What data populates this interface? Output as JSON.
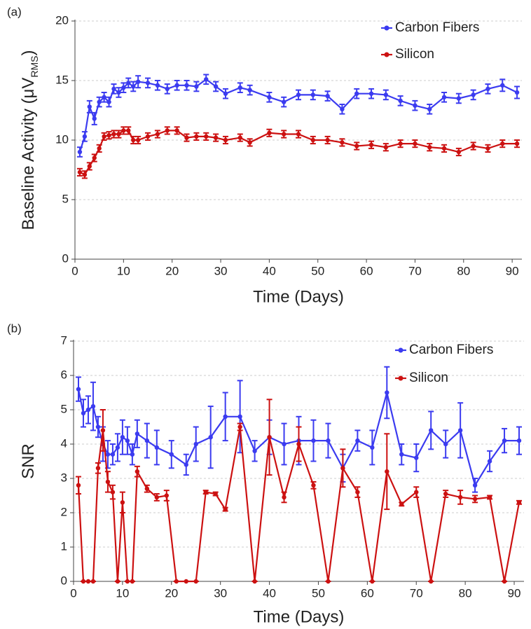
{
  "chart_data": [
    {
      "type": "line",
      "label": "(a)",
      "xlabel": "Time (Days)",
      "ylabel": [
        "Baseline Activity (μV",
        "RMS",
        ")"
      ],
      "xlim": [
        0,
        92
      ],
      "xticks": [
        0,
        10,
        20,
        30,
        40,
        50,
        60,
        70,
        80,
        90
      ],
      "ylim": [
        0,
        20
      ],
      "yticks": [
        0,
        5,
        10,
        15,
        20
      ],
      "grid": true,
      "legend": "upper right",
      "series": [
        {
          "name": "Carbon Fibers",
          "color": "#3b3bf0",
          "x": [
            1,
            2,
            3,
            4,
            5,
            6,
            7,
            8,
            9,
            10,
            11,
            12,
            13,
            15,
            17,
            19,
            21,
            23,
            25,
            27,
            29,
            31,
            34,
            36,
            40,
            43,
            46,
            49,
            52,
            55,
            58,
            61,
            64,
            67,
            70,
            73,
            76,
            79,
            82,
            85,
            88,
            91
          ],
          "values": [
            9.0,
            10.3,
            12.8,
            11.8,
            13.2,
            13.6,
            13.2,
            14.3,
            14.0,
            14.4,
            14.8,
            14.5,
            14.9,
            14.8,
            14.6,
            14.3,
            14.6,
            14.6,
            14.5,
            15.1,
            14.5,
            13.9,
            14.4,
            14.2,
            13.6,
            13.2,
            13.8,
            13.8,
            13.7,
            12.6,
            13.9,
            13.9,
            13.8,
            13.3,
            12.9,
            12.6,
            13.6,
            13.5,
            13.8,
            14.3,
            14.6,
            14.0
          ],
          "errors": [
            0.4,
            0.4,
            0.5,
            0.5,
            0.4,
            0.4,
            0.4,
            0.4,
            0.4,
            0.4,
            0.4,
            0.4,
            0.5,
            0.4,
            0.4,
            0.4,
            0.4,
            0.4,
            0.4,
            0.4,
            0.4,
            0.4,
            0.4,
            0.4,
            0.4,
            0.4,
            0.4,
            0.4,
            0.4,
            0.4,
            0.4,
            0.4,
            0.4,
            0.4,
            0.4,
            0.4,
            0.4,
            0.4,
            0.4,
            0.4,
            0.5,
            0.5
          ]
        },
        {
          "name": "Silicon",
          "color": "#cc1111",
          "x": [
            1,
            2,
            3,
            4,
            5,
            6,
            7,
            8,
            9,
            10,
            11,
            12,
            13,
            15,
            17,
            19,
            21,
            23,
            25,
            27,
            29,
            31,
            34,
            36,
            40,
            43,
            46,
            49,
            52,
            55,
            58,
            61,
            64,
            67,
            70,
            73,
            76,
            79,
            82,
            85,
            88,
            91
          ],
          "values": [
            7.3,
            7.1,
            7.8,
            8.5,
            9.3,
            10.3,
            10.4,
            10.5,
            10.5,
            10.8,
            10.8,
            10.0,
            10.0,
            10.3,
            10.5,
            10.8,
            10.8,
            10.2,
            10.3,
            10.3,
            10.2,
            10.0,
            10.2,
            9.8,
            10.6,
            10.5,
            10.5,
            10.0,
            10.0,
            9.8,
            9.5,
            9.6,
            9.4,
            9.7,
            9.7,
            9.4,
            9.3,
            9.0,
            9.5,
            9.3,
            9.7,
            9.7
          ],
          "errors": [
            0.3,
            0.3,
            0.3,
            0.3,
            0.3,
            0.3,
            0.3,
            0.3,
            0.3,
            0.3,
            0.3,
            0.3,
            0.3,
            0.3,
            0.3,
            0.3,
            0.3,
            0.3,
            0.3,
            0.3,
            0.3,
            0.3,
            0.3,
            0.3,
            0.3,
            0.3,
            0.3,
            0.3,
            0.3,
            0.3,
            0.3,
            0.3,
            0.3,
            0.3,
            0.3,
            0.3,
            0.3,
            0.3,
            0.3,
            0.3,
            0.3,
            0.3
          ]
        }
      ]
    },
    {
      "type": "line",
      "label": "(b)",
      "xlabel": "Time (Days)",
      "ylabel": [
        "SNR"
      ],
      "xlim": [
        0,
        92
      ],
      "xticks": [
        0,
        10,
        20,
        30,
        40,
        50,
        60,
        70,
        80,
        90
      ],
      "ylim": [
        0,
        7
      ],
      "yticks": [
        0,
        1,
        2,
        3,
        4,
        5,
        6,
        7
      ],
      "grid": true,
      "legend": "upper right",
      "series": [
        {
          "name": "Carbon Fibers",
          "color": "#3b3bf0",
          "x": [
            1,
            2,
            3,
            4,
            5,
            6,
            7,
            8,
            9,
            10,
            11,
            12,
            13,
            15,
            17,
            20,
            23,
            25,
            28,
            31,
            34,
            37,
            40,
            43,
            46,
            49,
            52,
            55,
            58,
            61,
            64,
            67,
            70,
            73,
            76,
            79,
            82,
            85,
            88,
            91
          ],
          "values": [
            5.6,
            4.9,
            5.0,
            5.1,
            4.5,
            4.0,
            3.7,
            3.7,
            3.9,
            4.2,
            4.1,
            3.7,
            4.3,
            4.1,
            3.9,
            3.7,
            3.4,
            4.0,
            4.2,
            4.8,
            4.8,
            3.8,
            4.2,
            4.0,
            4.1,
            4.1,
            4.1,
            3.3,
            4.1,
            3.9,
            5.5,
            3.7,
            3.6,
            4.4,
            4.0,
            4.4,
            2.8,
            3.5,
            4.1,
            4.1
          ],
          "errors": [
            0.35,
            0.4,
            0.4,
            0.7,
            0.3,
            0.5,
            0.4,
            0.3,
            0.4,
            0.5,
            0.4,
            0.3,
            0.4,
            0.5,
            0.5,
            0.4,
            0.3,
            0.5,
            0.9,
            0.7,
            1.05,
            0.3,
            0.5,
            0.6,
            0.7,
            0.6,
            0.5,
            0.4,
            0.3,
            0.5,
            0.75,
            0.3,
            0.4,
            0.55,
            0.4,
            0.8,
            0.2,
            0.3,
            0.35,
            0.4
          ]
        },
        {
          "name": "Silicon",
          "color": "#cc1111",
          "x": [
            1,
            2,
            3,
            4,
            5,
            6,
            7,
            8,
            9,
            10,
            11,
            12,
            13,
            15,
            17,
            19,
            21,
            23,
            25,
            27,
            29,
            31,
            34,
            37,
            40,
            43,
            46,
            49,
            52,
            55,
            58,
            61,
            64,
            67,
            70,
            73,
            76,
            79,
            82,
            85,
            88,
            91
          ],
          "values": [
            2.8,
            0,
            0,
            0,
            3.3,
            4.4,
            2.9,
            2.6,
            0,
            2.3,
            0,
            0,
            3.2,
            2.7,
            2.45,
            2.5,
            0,
            0,
            0,
            2.6,
            2.55,
            2.1,
            4.5,
            0,
            4.2,
            2.45,
            4.0,
            2.8,
            0,
            3.3,
            2.6,
            0,
            3.2,
            2.25,
            2.6,
            0,
            2.55,
            2.45,
            2.4,
            2.45,
            0,
            2.3
          ],
          "errors": [
            0.25,
            0,
            0,
            0,
            0.15,
            0.6,
            0.3,
            0.2,
            0,
            0.3,
            0,
            0,
            0.15,
            0.1,
            0.1,
            0.15,
            0,
            0,
            0,
            0.05,
            0.05,
            0.05,
            0.1,
            0,
            1.1,
            0.15,
            0.5,
            0.1,
            0,
            0.55,
            0.15,
            0,
            1.1,
            0.05,
            0.15,
            0,
            0.1,
            0.2,
            0.1,
            0.05,
            0,
            0.05
          ]
        }
      ]
    }
  ]
}
